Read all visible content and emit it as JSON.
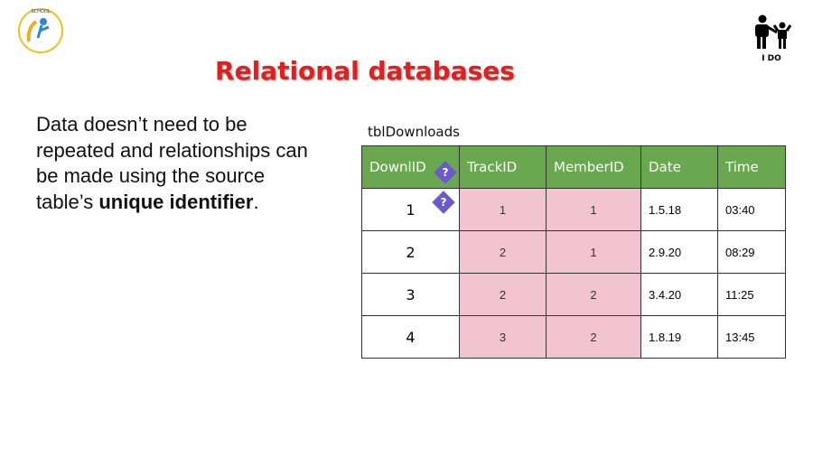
{
  "logo": {
    "text": "THE BROMFORDS SCHOOL",
    "motto": "ACHIEVE ENRICH PREPARE"
  },
  "title": "Relational databases",
  "badge": {
    "icon": "adult-child-icon",
    "label": "I DO"
  },
  "body": {
    "text1": "Data doesn’t need to be repeated and relationships can be made using the source table’s ",
    "bold": "unique identifier",
    "text2": "."
  },
  "table": {
    "name": "tblDownloads",
    "headers": [
      "DownlID",
      "TrackID",
      "MemberID",
      "Date",
      "Time"
    ],
    "rows": [
      [
        "1",
        "1",
        "1",
        "1.5.18",
        "03:40"
      ],
      [
        "2",
        "2",
        "1",
        "2.9.20",
        "08:29"
      ],
      [
        "3",
        "2",
        "2",
        "3.4.20",
        "11:25"
      ],
      [
        "4",
        "3",
        "2",
        "1.8.19",
        "13:45"
      ]
    ],
    "header_color": "#6aa84f",
    "foreign_key_color": "#f2c4d2"
  }
}
